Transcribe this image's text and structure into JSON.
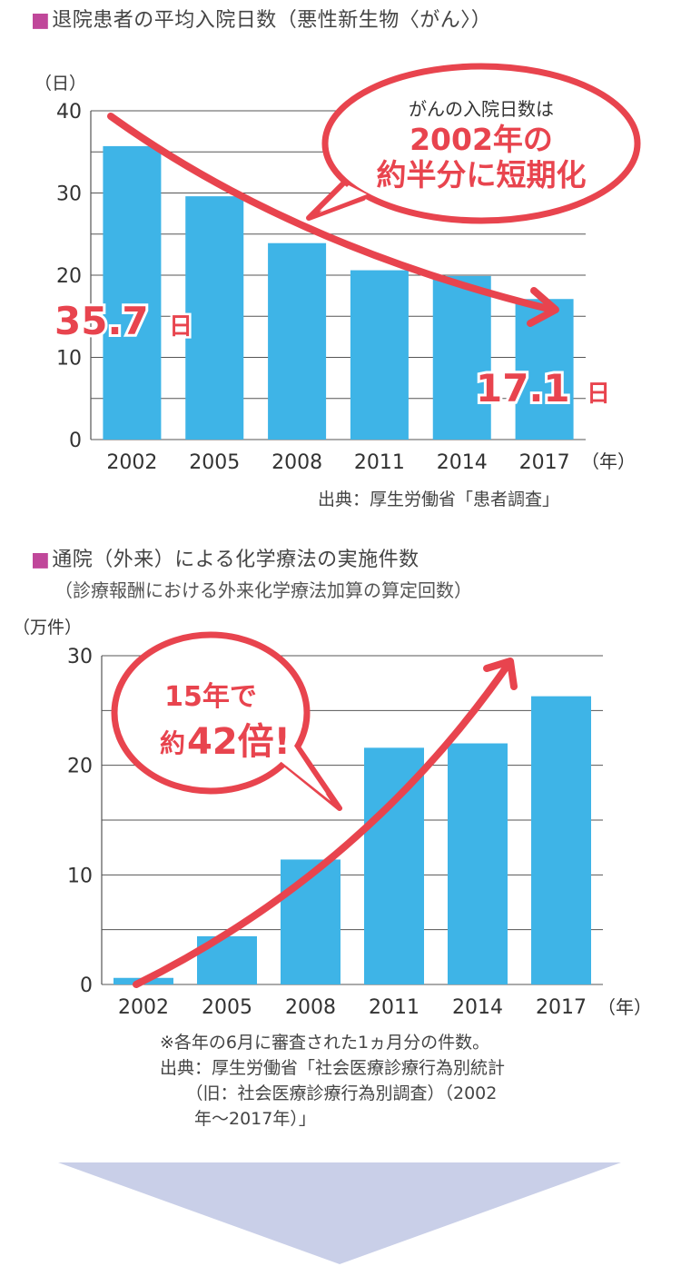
{
  "chart1": {
    "title": "退院患者の平均入院日数（悪性新生物〈がん〉）",
    "unit_label": "（日）",
    "x_unit_label": "（年）",
    "yticks": [
      0,
      10,
      20,
      30,
      40
    ],
    "source": "出典：厚生労働省「患者調査」",
    "callout_line1": "がんの入院日数は",
    "callout_line2": "2002年の",
    "callout_line3": "約半分に短期化",
    "label_first_value": "35.7",
    "label_first_unit": "日",
    "label_last_value": "17.1",
    "label_last_unit": "日"
  },
  "chart2": {
    "title": "通院（外来）による化学療法の実施件数",
    "subtitle": "（診療報酬における外来化学療法加算の算定回数）",
    "unit_label": "（万件）",
    "x_unit_label": "（年）",
    "yticks": [
      0,
      10,
      20,
      30
    ],
    "callout_line1": "15年で",
    "callout_line2_prefix": "約",
    "callout_line2_num": "42倍!",
    "note_lines": [
      "※各年の6月に審査された1ヵ月分の件数。",
      "出典：厚生労働省「社会医療診療行為別統計",
      "　　（旧：社会医療診療行為別調査）（2002",
      "　　年〜2017年）」"
    ]
  },
  "colors": {
    "bar": "#3eb4e7",
    "accent": "#e8444e",
    "arrow_down": "#c9cfe8",
    "bullet": "#c0479a"
  },
  "chart_data": [
    {
      "type": "bar",
      "categories": [
        "2002",
        "2005",
        "2008",
        "2011",
        "2014",
        "2017"
      ],
      "values": [
        35.7,
        29.6,
        23.9,
        20.6,
        19.9,
        17.1
      ],
      "title": "退院患者の平均入院日数（悪性新生物〈がん〉）",
      "ylabel": "（日）",
      "xlabel": "（年）",
      "ylim": [
        0,
        40
      ],
      "grid": true
    },
    {
      "type": "bar",
      "categories": [
        "2002",
        "2005",
        "2008",
        "2011",
        "2014",
        "2017"
      ],
      "values": [
        0.6,
        4.4,
        11.4,
        21.6,
        22.0,
        26.3
      ],
      "title": "通院（外来）による化学療法の実施件数",
      "ylabel": "（万件）",
      "xlabel": "（年）",
      "ylim": [
        0,
        30
      ],
      "grid": true
    }
  ]
}
